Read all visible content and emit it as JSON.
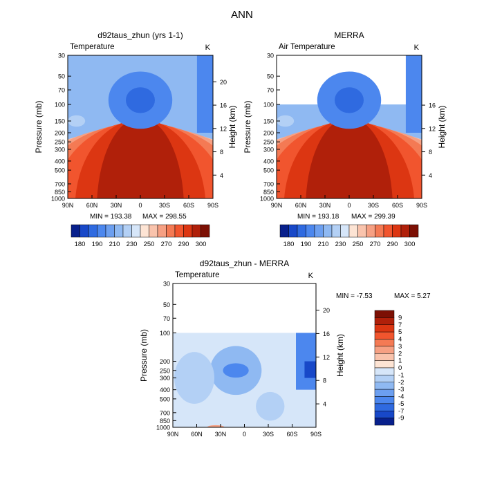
{
  "figure_title": "ANN",
  "chart_data": [
    {
      "type": "heatmap",
      "title": "d92taus_zhun (yrs 1-1)",
      "subtitle": "Temperature",
      "units": "K",
      "ylabel": "Pressure (mb)",
      "ylabel_right": "Height (km)",
      "x_ticks": [
        "90N",
        "60N",
        "30N",
        "0",
        "30S",
        "60S",
        "90S"
      ],
      "y_ticks": [
        "30",
        "50",
        "70",
        "100",
        "150",
        "200",
        "250",
        "300",
        "400",
        "500",
        "700",
        "850",
        "1000"
      ],
      "height_ticks": [
        "4",
        "8",
        "12",
        "16",
        "20"
      ],
      "min_label": "MIN = 193.38",
      "max_label": "MAX = 298.55",
      "top_pressure": 30,
      "colorbar": {
        "orientation": "horizontal",
        "labels": [
          "180",
          "190",
          "210",
          "230",
          "250",
          "270",
          "290",
          "300"
        ],
        "colors": [
          "#08208c",
          "#1848c8",
          "#2f6ae0",
          "#4c87ee",
          "#6c9ff0",
          "#8fb9f2",
          "#b3d0f5",
          "#d6e6f9",
          "#fde4d4",
          "#f9c3ac",
          "#f6a083",
          "#f47a54",
          "#f1552e",
          "#dc3612",
          "#b0200a",
          "#7c1004"
        ]
      }
    },
    {
      "type": "heatmap",
      "title": "MERRA",
      "subtitle": "Air Temperature",
      "units": "K",
      "ylabel": "Pressure (mb)",
      "ylabel_right": "Height (km)",
      "x_ticks": [
        "90N",
        "60N",
        "30N",
        "0",
        "30S",
        "60S",
        "90S"
      ],
      "y_ticks": [
        "30",
        "50",
        "70",
        "100",
        "150",
        "200",
        "250",
        "300",
        "400",
        "500",
        "700",
        "850",
        "1000"
      ],
      "height_ticks": [
        "4",
        "8",
        "12",
        "16"
      ],
      "min_label": "MIN = 193.18",
      "max_label": "MAX = 299.39",
      "top_pressure": 100,
      "colorbar": {
        "orientation": "horizontal",
        "labels": [
          "180",
          "190",
          "210",
          "230",
          "250",
          "270",
          "290",
          "300"
        ],
        "colors": [
          "#08208c",
          "#1848c8",
          "#2f6ae0",
          "#4c87ee",
          "#6c9ff0",
          "#8fb9f2",
          "#b3d0f5",
          "#d6e6f9",
          "#fde4d4",
          "#f9c3ac",
          "#f6a083",
          "#f47a54",
          "#f1552e",
          "#dc3612",
          "#b0200a",
          "#7c1004"
        ]
      }
    },
    {
      "type": "heatmap",
      "title": "d92taus_zhun - MERRA",
      "subtitle": "Temperature",
      "units": "K",
      "ylabel": "Pressure (mb)",
      "ylabel_right": "Height (km)",
      "x_ticks": [
        "90N",
        "60N",
        "30N",
        "0",
        "30S",
        "60S",
        "90S"
      ],
      "y_ticks": [
        "30",
        "50",
        "70",
        "100",
        "200",
        "250",
        "300",
        "400",
        "500",
        "700",
        "850",
        "1000"
      ],
      "height_ticks": [
        "4",
        "8",
        "12",
        "16",
        "20"
      ],
      "min_label": "MIN =  -7.53",
      "max_label": "MAX =    5.27",
      "top_pressure": 100,
      "colorbar": {
        "orientation": "vertical",
        "labels": [
          "9",
          "7",
          "5",
          "4",
          "3",
          "2",
          "1",
          "0",
          "-1",
          "-2",
          "-3",
          "-4",
          "-5",
          "-7",
          "-9"
        ],
        "colors": [
          "#7c1004",
          "#b0200a",
          "#dc3612",
          "#f1552e",
          "#f47a54",
          "#f6a083",
          "#f9c3ac",
          "#fde4d4",
          "#d6e6f9",
          "#b3d0f5",
          "#8fb9f2",
          "#6c9ff0",
          "#4c87ee",
          "#2f6ae0",
          "#1848c8",
          "#08208c"
        ]
      }
    }
  ]
}
